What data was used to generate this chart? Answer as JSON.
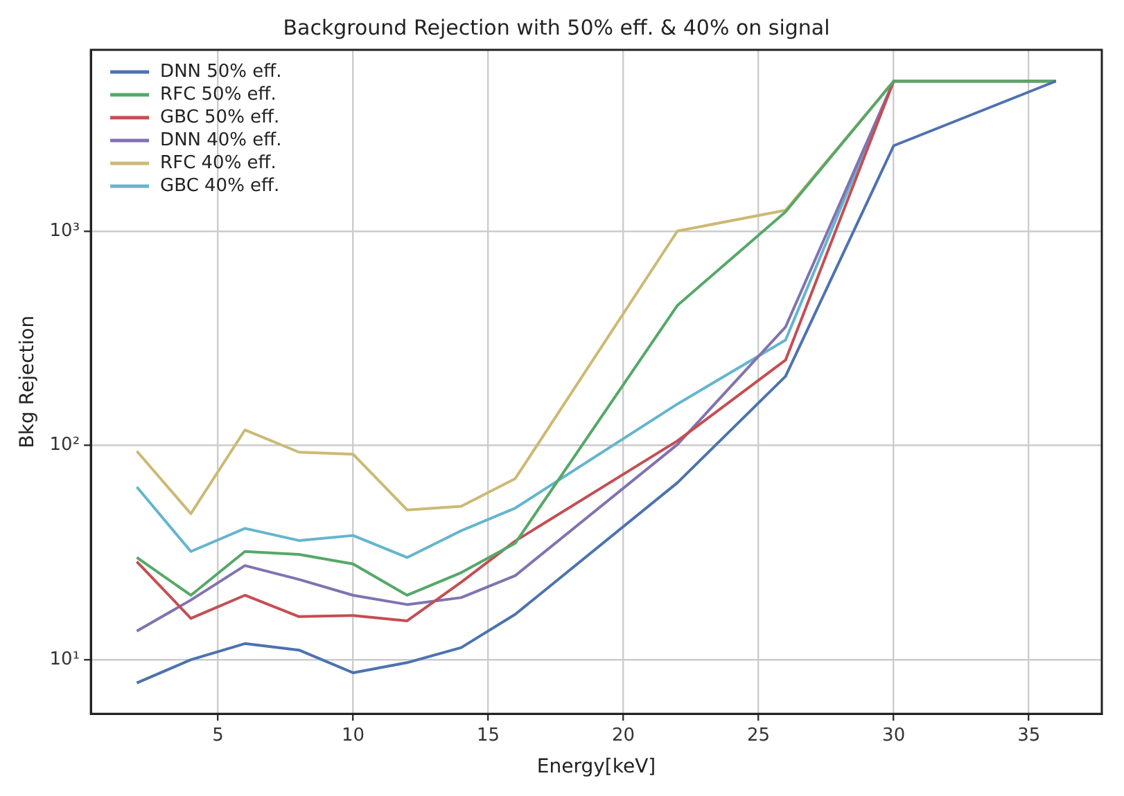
{
  "chart_data": {
    "type": "line",
    "title": "Background Rejection with 50% eff. & 40% on signal",
    "xlabel": "Energy[keV]",
    "ylabel": "Bkg Rejection",
    "x": [
      2,
      4,
      6,
      8,
      10,
      12,
      14,
      16,
      22,
      26,
      30,
      36
    ],
    "series": [
      {
        "name": "DNN 50% eff.",
        "color": "#4c72b0",
        "values": [
          7.8,
          10,
          11.9,
          11.1,
          8.7,
          9.7,
          11.4,
          16.3,
          67,
          210,
          2500,
          5000
        ]
      },
      {
        "name": "RFC 50% eff.",
        "color": "#55a868",
        "values": [
          30,
          20,
          32,
          31,
          28,
          20,
          25.5,
          35,
          450,
          1230,
          5000,
          5000
        ]
      },
      {
        "name": "GBC 50% eff.",
        "color": "#c44e52",
        "values": [
          28.7,
          15.6,
          20,
          15.9,
          16.1,
          15.2,
          23,
          35.8,
          105,
          250,
          5000,
          5000
        ]
      },
      {
        "name": "DNN 40% eff.",
        "color": "#8172b2",
        "values": [
          13.6,
          19,
          27.5,
          23.7,
          20,
          18.1,
          19.5,
          24.7,
          101,
          357,
          5000,
          5000
        ]
      },
      {
        "name": "RFC 40% eff.",
        "color": "#ccb974",
        "values": [
          94,
          48,
          118,
          93,
          91,
          50,
          52,
          70,
          1000,
          1250,
          5000,
          5000
        ]
      },
      {
        "name": "GBC 40% eff.",
        "color": "#64b5cd",
        "values": [
          64,
          32,
          41,
          36,
          38,
          30,
          40,
          51,
          156,
          310,
          5000,
          5000
        ]
      }
    ],
    "xlim": [
      0.3,
      37.7
    ],
    "xticks": [
      5,
      10,
      15,
      20,
      25,
      30,
      35
    ],
    "ylim": [
      5.6,
      7000
    ],
    "yticks": [
      {
        "value": 10,
        "label": "10¹"
      },
      {
        "value": 100,
        "label": "10²"
      },
      {
        "value": 1000,
        "label": "10³"
      }
    ],
    "log": "y",
    "grid": true,
    "legend": "top left",
    "marker": "none",
    "line_style": "solid"
  }
}
